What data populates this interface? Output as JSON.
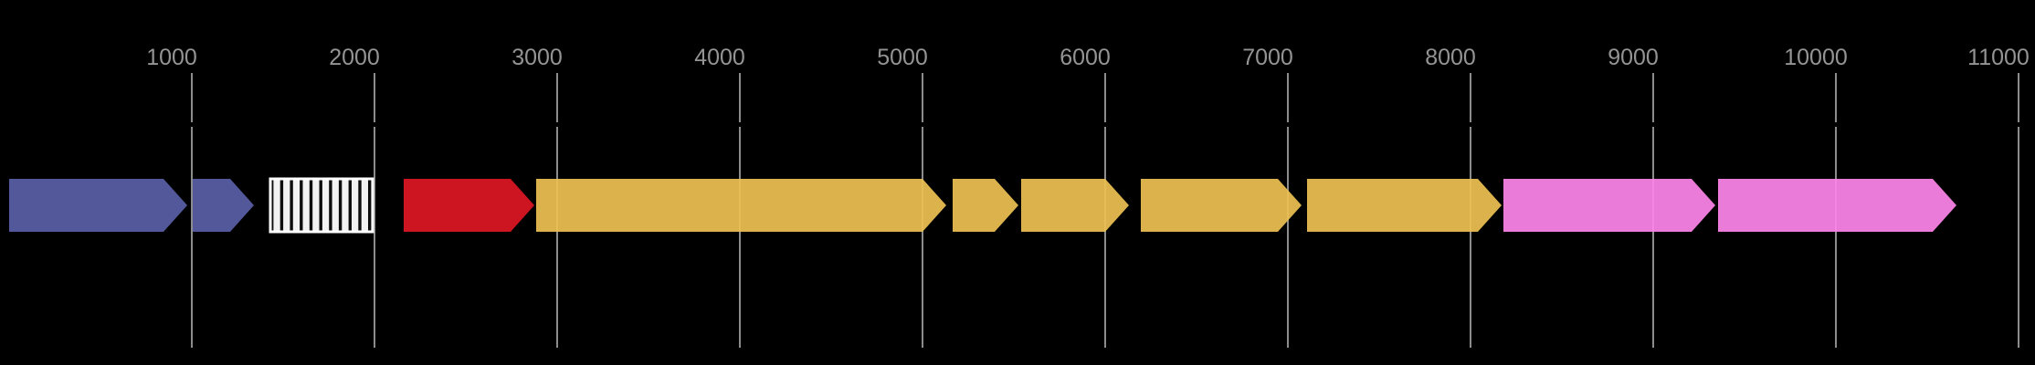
{
  "figure": {
    "background": "#000000",
    "kind": "gene cluster map with top scale axis"
  },
  "chart_data": {
    "type": "gene_map",
    "title": "",
    "xlabel": "",
    "ylabel": "",
    "axis": {
      "orientation": "horizontal",
      "position": "top",
      "range": [
        0,
        11090
      ],
      "grid": true,
      "tick_values": [
        1000,
        2000,
        3000,
        4000,
        5000,
        6000,
        7000,
        8000,
        9000,
        10000,
        11000
      ],
      "tick_labels": [
        "1000",
        "2000",
        "3000",
        "4000",
        "5000",
        "6000",
        "7000",
        "8000",
        "9000",
        "10000",
        "11000"
      ],
      "tick_label_color": "#949494",
      "gridline_color": "#8c8c8c"
    },
    "features": [
      {
        "id": "feature-1",
        "shape": "arrow",
        "strand": "+",
        "start": 0,
        "end": 975,
        "color": "#585fa5"
      },
      {
        "id": "feature-2",
        "shape": "arrow",
        "strand": "+",
        "start": 1005,
        "end": 1340,
        "color": "#585fa5"
      },
      {
        "id": "feature-3",
        "shape": "hatched-box",
        "strand": "none",
        "start": 1430,
        "end": 1990,
        "color": "#f2f2f2",
        "hatch_color": "#0d0d0d",
        "border_color": "#ffffff"
      },
      {
        "id": "feature-4",
        "shape": "arrow",
        "strand": "+",
        "start": 2160,
        "end": 2875,
        "color": "#dc1722"
      },
      {
        "id": "feature-5",
        "shape": "arrow",
        "strand": "+",
        "start": 2885,
        "end": 5130,
        "color": "#ecbf52"
      },
      {
        "id": "feature-6",
        "shape": "arrow",
        "strand": "+",
        "start": 5165,
        "end": 5525,
        "color": "#ecbf52"
      },
      {
        "id": "feature-7",
        "shape": "arrow",
        "strand": "+",
        "start": 5540,
        "end": 6130,
        "color": "#ecbf52"
      },
      {
        "id": "feature-8",
        "shape": "arrow",
        "strand": "+",
        "start": 6195,
        "end": 7075,
        "color": "#ecbf52"
      },
      {
        "id": "feature-9",
        "shape": "arrow",
        "strand": "+",
        "start": 7105,
        "end": 8170,
        "color": "#ecbf52"
      },
      {
        "id": "feature-10",
        "shape": "arrow",
        "strand": "+",
        "start": 8180,
        "end": 9340,
        "color": "#fc84e8"
      },
      {
        "id": "feature-11",
        "shape": "arrow",
        "strand": "+",
        "start": 9355,
        "end": 10660,
        "color": "#fc84e8"
      }
    ]
  }
}
